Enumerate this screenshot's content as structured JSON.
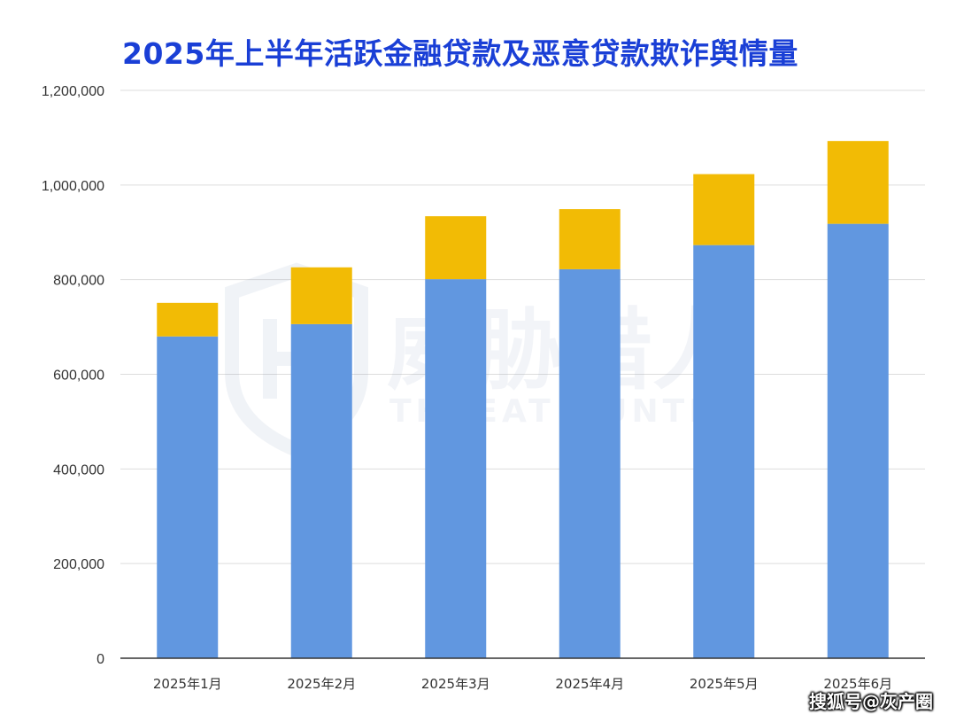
{
  "title": "2025年上半年活跃金融贷款及恶意贷款欺诈舆情量",
  "watermark": {
    "cn": "威胁猎人",
    "en": "THREAT HUNTER"
  },
  "credit": "搜狐号@灰产圈",
  "colors": {
    "series_bottom": "#6197e0",
    "series_top": "#f2bb05",
    "title": "#1a3fd6",
    "grid": "#dddddd"
  },
  "chart_data": {
    "type": "bar",
    "stacked": true,
    "title": "2025年上半年活跃金融贷款及恶意贷款欺诈舆情量",
    "categories": [
      "2025年1月",
      "2025年2月",
      "2025年3月",
      "2025年4月",
      "2025年5月",
      "2025年6月"
    ],
    "series": [
      {
        "values": [
          680000,
          706000,
          801000,
          822000,
          873000,
          918000
        ]
      },
      {
        "values": [
          71000,
          120000,
          133000,
          127000,
          150000,
          175000
        ]
      }
    ],
    "ylim": [
      0,
      1200000
    ],
    "yticks": [
      0,
      200000,
      400000,
      600000,
      800000,
      1000000,
      1200000
    ],
    "ytick_labels": [
      "0",
      "200,000",
      "400,000",
      "600,000",
      "800,000",
      "1,000,000",
      "1,200,000"
    ],
    "grid": true,
    "legend": "none"
  }
}
